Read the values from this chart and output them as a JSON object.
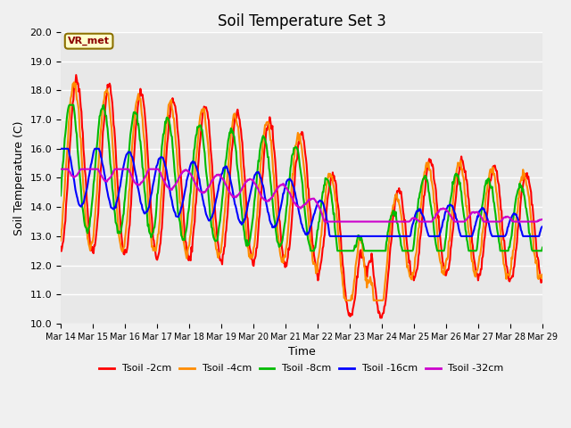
{
  "title": "Soil Temperature Set 3",
  "xlabel": "Time",
  "ylabel": "Soil Temperature (C)",
  "ylim": [
    10.0,
    20.0
  ],
  "yticks": [
    10.0,
    11.0,
    12.0,
    13.0,
    14.0,
    15.0,
    16.0,
    17.0,
    18.0,
    19.0,
    20.0
  ],
  "xtick_labels": [
    "Mar 14",
    "Mar 15",
    "Mar 16",
    "Mar 17",
    "Mar 18",
    "Mar 19",
    "Mar 20",
    "Mar 21",
    "Mar 22",
    "Mar 23",
    "Mar 24",
    "Mar 25",
    "Mar 26",
    "Mar 27",
    "Mar 28",
    "Mar 29"
  ],
  "bg_color": "#e8e8e8",
  "fig_color": "#f0f0f0",
  "legend_label": "VR_met",
  "legend_box_facecolor": "#ffffcc",
  "legend_box_edge": "#8b7000",
  "series": [
    {
      "label": "Tsoil -2cm",
      "color": "#ff0000",
      "lw": 1.5
    },
    {
      "label": "Tsoil -4cm",
      "color": "#ff8c00",
      "lw": 1.5
    },
    {
      "label": "Tsoil -8cm",
      "color": "#00bb00",
      "lw": 1.5
    },
    {
      "label": "Tsoil -16cm",
      "color": "#0000ff",
      "lw": 1.5
    },
    {
      "label": "Tsoil -32cm",
      "color": "#cc00cc",
      "lw": 1.5
    }
  ],
  "grid_color": "#ffffff",
  "grid_lw": 1.0,
  "title_fontsize": 12,
  "axis_label_fontsize": 9,
  "tick_fontsize": 8
}
